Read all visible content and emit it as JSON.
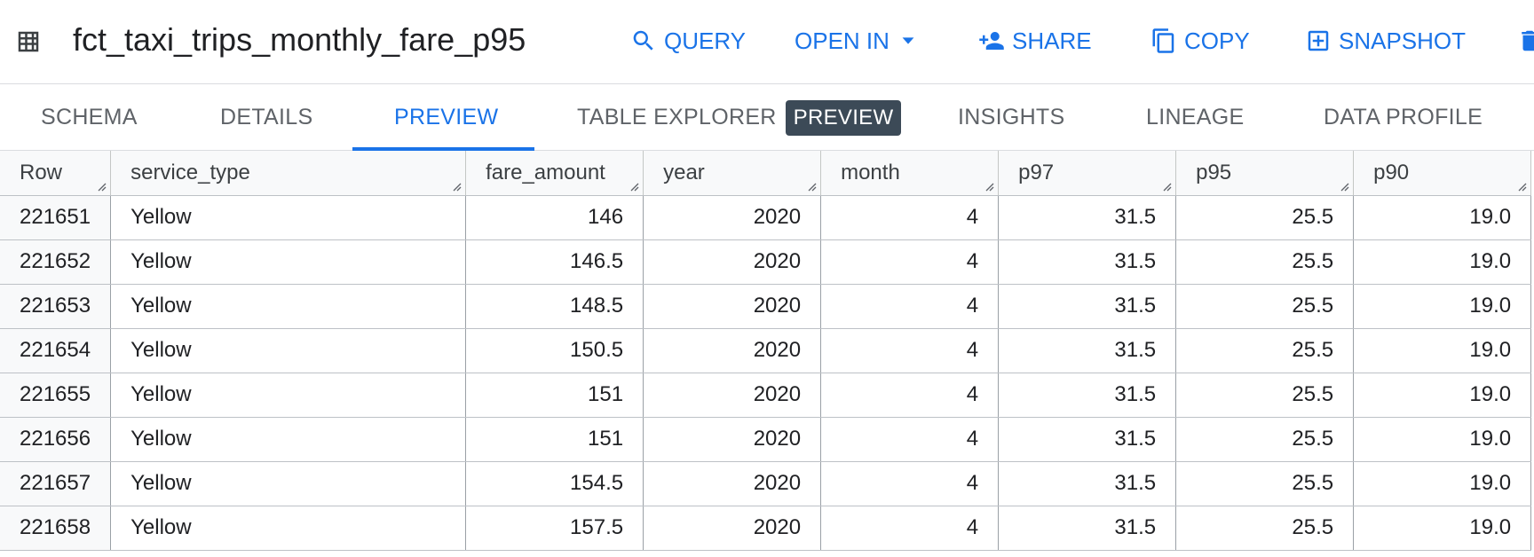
{
  "header": {
    "title": "fct_taxi_trips_monthly_fare_p95",
    "table_icon": "table-grid-icon",
    "actions": [
      {
        "label": "QUERY",
        "icon": "search-icon"
      },
      {
        "label": "OPEN IN",
        "icon": "dropdown-arrow-icon"
      },
      {
        "label": "SHARE",
        "icon": "person-add-icon"
      },
      {
        "label": "COPY",
        "icon": "copy-icon"
      },
      {
        "label": "SNAPSHOT",
        "icon": "snapshot-icon"
      }
    ],
    "accent_color": "#1a73e8"
  },
  "tabs": [
    {
      "label": "SCHEMA"
    },
    {
      "label": "DETAILS"
    },
    {
      "label": "PREVIEW",
      "active": true
    },
    {
      "label": "TABLE EXPLORER",
      "badge": "PREVIEW"
    },
    {
      "label": "INSIGHTS"
    },
    {
      "label": "LINEAGE"
    },
    {
      "label": "DATA PROFILE"
    }
  ],
  "table": {
    "columns": [
      "Row",
      "service_type",
      "fare_amount",
      "year",
      "month",
      "p97",
      "p95",
      "p90"
    ],
    "rows": [
      [
        "221651",
        "Yellow",
        "146",
        "2020",
        "4",
        "31.5",
        "25.5",
        "19.0"
      ],
      [
        "221652",
        "Yellow",
        "146.5",
        "2020",
        "4",
        "31.5",
        "25.5",
        "19.0"
      ],
      [
        "221653",
        "Yellow",
        "148.5",
        "2020",
        "4",
        "31.5",
        "25.5",
        "19.0"
      ],
      [
        "221654",
        "Yellow",
        "150.5",
        "2020",
        "4",
        "31.5",
        "25.5",
        "19.0"
      ],
      [
        "221655",
        "Yellow",
        "151",
        "2020",
        "4",
        "31.5",
        "25.5",
        "19.0"
      ],
      [
        "221656",
        "Yellow",
        "151",
        "2020",
        "4",
        "31.5",
        "25.5",
        "19.0"
      ],
      [
        "221657",
        "Yellow",
        "154.5",
        "2020",
        "4",
        "31.5",
        "25.5",
        "19.0"
      ],
      [
        "221658",
        "Yellow",
        "157.5",
        "2020",
        "4",
        "31.5",
        "25.5",
        "19.0"
      ]
    ]
  }
}
